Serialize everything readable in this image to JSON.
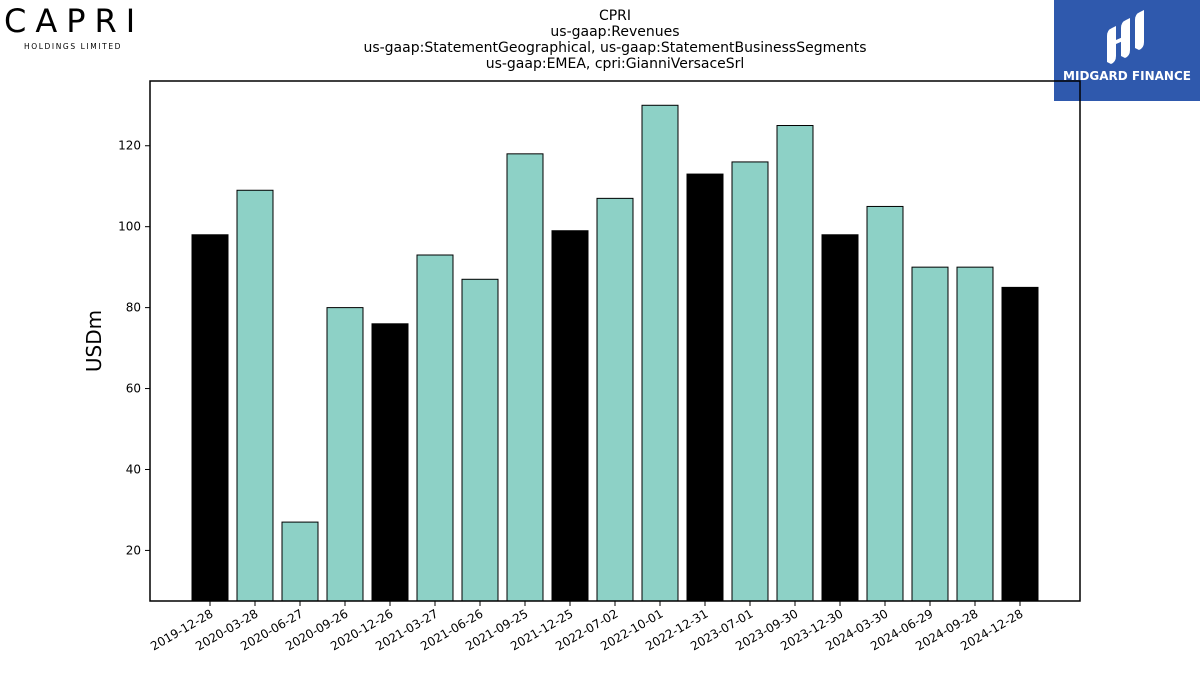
{
  "logos": {
    "company_word": "CAPRI",
    "company_sub": "HOLDINGS LIMITED",
    "publisher_text": "MIDGARD FINANCE"
  },
  "colors": {
    "q4_bar": "#000000",
    "other_bar": "#8dd1c6",
    "publisher_bg": "#2f59ad"
  },
  "chart_data": {
    "type": "bar",
    "title_lines": [
      "CPRI",
      "us-gaap:Revenues",
      "us-gaap:StatementGeographical, us-gaap:StatementBusinessSegments",
      "us-gaap:EMEA, cpri:GianniVersaceSrl"
    ],
    "xlabel": "",
    "ylabel": "USDm",
    "ylim": [
      7.5,
      136
    ],
    "yticks": [
      20,
      40,
      60,
      80,
      100,
      120
    ],
    "grid": false,
    "categories": [
      "2019-12-28",
      "2020-03-28",
      "2020-06-27",
      "2020-09-26",
      "2020-12-26",
      "2021-03-27",
      "2021-06-26",
      "2021-09-25",
      "2021-12-25",
      "2022-07-02",
      "2022-10-01",
      "2022-12-31",
      "2023-07-01",
      "2023-09-30",
      "2023-12-30",
      "2024-03-30",
      "2024-06-29",
      "2024-09-28",
      "2024-12-28"
    ],
    "values": [
      98,
      109,
      27,
      80,
      76,
      93,
      87,
      118,
      99,
      107,
      130,
      113,
      116,
      125,
      98,
      105,
      90,
      90,
      85
    ],
    "highlight": [
      true,
      false,
      false,
      false,
      true,
      false,
      false,
      false,
      true,
      false,
      false,
      true,
      false,
      false,
      true,
      false,
      false,
      false,
      true
    ]
  }
}
